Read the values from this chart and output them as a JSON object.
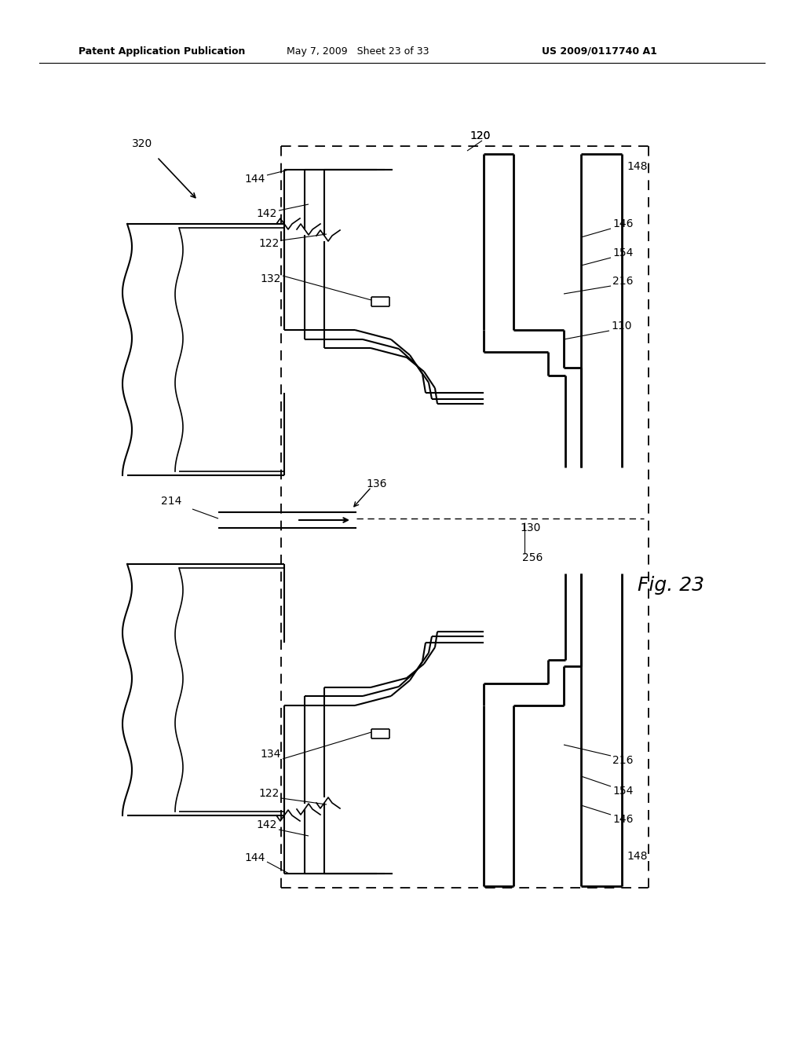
{
  "bg_color": "#ffffff",
  "line_color": "#000000",
  "header_left": "Patent Application Publication",
  "header_mid": "May 7, 2009   Sheet 23 of 33",
  "header_right": "US 2009/0117740 A1",
  "fig_label": "Fig. 23",
  "lw_main": 1.5,
  "lw_thick": 2.0,
  "lw_thin": 1.0
}
